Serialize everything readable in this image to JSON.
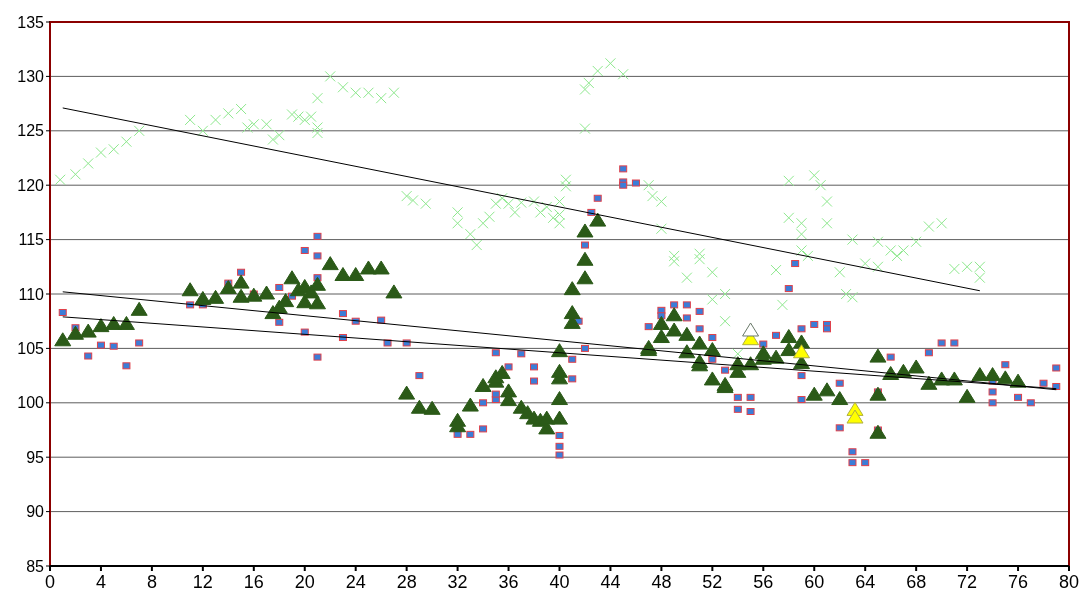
{
  "chart_data": {
    "type": "scatter",
    "xlim": [
      0,
      80
    ],
    "xticks": [
      0,
      4,
      8,
      12,
      16,
      20,
      24,
      28,
      32,
      36,
      40,
      44,
      48,
      52,
      56,
      60,
      64,
      68,
      72,
      76,
      80
    ],
    "ylim": [
      85,
      135
    ],
    "yticks": [
      85,
      90,
      95,
      100,
      105,
      110,
      115,
      120,
      125,
      130,
      135
    ],
    "grid": "y",
    "series": [
      {
        "color": "#8ee88e",
        "marker": "cross",
        "x": [
          0.8,
          2,
          3,
          4,
          5,
          6,
          7,
          11,
          12,
          13,
          14,
          15,
          15.5,
          16,
          17,
          17.5,
          18,
          19,
          19.5,
          20,
          20.5,
          21,
          21,
          21,
          22,
          23,
          24,
          25,
          26,
          27,
          28,
          28.5,
          29.5,
          32,
          32,
          33,
          33.5,
          34,
          34.5,
          35,
          35.5,
          36,
          36.5,
          37,
          38,
          38.5,
          39,
          39.5,
          40,
          40,
          40,
          40.5,
          40.5,
          42,
          42,
          42.3,
          43,
          44,
          45,
          47,
          47.3,
          48,
          48,
          49,
          49,
          50,
          51,
          51,
          52,
          52,
          53,
          53,
          54,
          57,
          57.5,
          58,
          58,
          59,
          59,
          59,
          59.5,
          60,
          60.5,
          61,
          61,
          62,
          62.5,
          63,
          63,
          64,
          65,
          65,
          66,
          66.5,
          67,
          68,
          69,
          70,
          71,
          72,
          73,
          73
        ],
        "values": [
          120.5,
          121,
          122,
          123,
          123.3,
          124,
          125,
          126,
          125,
          126,
          126.6,
          127,
          125.3,
          125.6,
          125.6,
          124.2,
          124.6,
          126.5,
          126.3,
          126,
          126.3,
          124.8,
          125.3,
          128,
          130,
          129,
          128.5,
          128.5,
          128,
          128.5,
          119,
          118.6,
          118.3,
          117.5,
          116.5,
          115.5,
          114.5,
          116.5,
          117.1,
          118.3,
          118.8,
          118.3,
          117.5,
          118.4,
          118.5,
          117.5,
          118,
          117,
          116.5,
          117.3,
          118.5,
          119.9,
          120.5,
          125.2,
          128.8,
          129.4,
          130.5,
          131.2,
          130.2,
          120,
          119,
          118.5,
          116,
          113.5,
          113,
          111.5,
          113.7,
          113.2,
          112,
          109.5,
          107.5,
          110,
          104.5,
          112.2,
          109,
          117,
          120.4,
          116.5,
          115.5,
          114,
          113.5,
          120.9,
          120,
          118.5,
          116.5,
          112,
          110,
          109.7,
          115,
          112.8,
          112.5,
          114.8,
          114,
          113.5,
          114,
          114.8,
          116.2,
          116.5,
          112.3,
          112.5,
          112.5,
          111.5
        ]
      },
      {
        "color": "#3b7dd8",
        "marker": "square",
        "x": [
          1,
          2,
          3,
          4,
          5,
          6,
          7,
          11,
          12,
          14,
          15,
          16,
          18,
          18,
          19,
          20,
          20,
          21,
          21,
          21,
          21,
          23,
          23,
          24,
          26,
          26.5,
          28,
          29,
          32,
          33,
          34,
          34,
          35,
          35,
          35,
          36,
          37,
          38,
          38,
          40,
          40,
          40,
          41,
          41,
          41.5,
          42,
          42,
          42.5,
          43,
          45,
          45,
          45,
          46,
          47,
          47,
          48,
          48,
          49,
          50,
          50,
          51,
          51,
          52,
          52,
          53,
          54,
          54,
          55,
          55,
          56,
          57,
          58,
          58.5,
          59,
          59,
          59,
          60,
          61,
          61,
          62,
          62,
          63,
          63,
          64,
          65,
          65,
          66,
          69,
          70,
          71,
          74,
          74,
          74,
          75,
          76,
          77,
          78,
          79,
          79
        ],
        "values": [
          108.3,
          106.9,
          104.3,
          105.3,
          105.2,
          103.4,
          105.5,
          109,
          109,
          111,
          112,
          110,
          107.4,
          110.6,
          109.8,
          114,
          106.5,
          115.3,
          111.5,
          113.5,
          104.2,
          106,
          108.2,
          107.5,
          107.6,
          105.5,
          105.5,
          102.5,
          97.1,
          97.1,
          100,
          97.6,
          100.3,
          100.8,
          104.6,
          103.3,
          104.5,
          103.3,
          102,
          97,
          96,
          95.2,
          104,
          102.2,
          107.5,
          105,
          114.5,
          117.5,
          118.8,
          120.3,
          121.5,
          120,
          120.2,
          105,
          107,
          108.5,
          108,
          109,
          109,
          107.8,
          108.4,
          106.8,
          106,
          104,
          103,
          100.5,
          99.4,
          100.5,
          99.2,
          105.4,
          106.2,
          110.5,
          112.8,
          106.8,
          102.5,
          100.3,
          107.2,
          107.2,
          106.8,
          101.8,
          97.7,
          94.5,
          95.5,
          94.5,
          101,
          97.5,
          104.2,
          104.6,
          105.5,
          105.5,
          102,
          101,
          100,
          103.5,
          100.5,
          100,
          101.8,
          101.5,
          103.2
        ]
      },
      {
        "color": "#2b5a18",
        "marker": "triangle",
        "x": [
          1,
          2,
          3,
          4,
          5,
          6,
          7,
          11,
          12,
          13,
          14,
          15,
          15,
          16,
          17,
          17.5,
          18,
          18.5,
          19,
          19.5,
          20,
          20,
          20.5,
          21,
          21,
          22,
          23,
          24,
          25,
          26,
          27,
          28,
          29,
          30,
          32,
          32,
          33,
          34,
          35,
          35,
          35.5,
          36,
          36,
          37,
          37.5,
          38,
          38.5,
          39,
          39,
          40,
          40,
          40,
          40,
          40,
          41,
          41,
          41,
          42,
          42,
          42,
          43,
          47,
          47,
          48,
          48,
          49,
          49,
          50,
          50,
          51,
          51,
          51,
          52,
          52,
          53,
          53,
          54,
          54,
          55,
          56,
          56,
          57,
          58,
          58,
          59,
          59,
          60,
          61,
          62,
          65,
          65,
          65,
          66,
          67,
          68,
          69,
          70,
          71,
          72,
          73,
          74,
          75,
          76
        ],
        "values": [
          105.7,
          106.3,
          106.5,
          107,
          107.2,
          107.2,
          108.5,
          110.3,
          109.5,
          109.6,
          110.5,
          111,
          109.7,
          109.8,
          110,
          108.2,
          108.7,
          109.3,
          111.4,
          110.3,
          110.6,
          109.2,
          110.1,
          110.8,
          109.1,
          112.7,
          111.7,
          111.7,
          112.3,
          112.3,
          110.1,
          100.8,
          99.5,
          99.4,
          98.3,
          97.8,
          99.7,
          101.5,
          101.9,
          102.3,
          102.7,
          101,
          100.2,
          99.5,
          99,
          98.5,
          98.3,
          97.6,
          98.5,
          98.5,
          100.3,
          102.2,
          102.8,
          104.7,
          107.3,
          108.2,
          110.4,
          111.4,
          113.1,
          115.7,
          116.7,
          104.8,
          105,
          107.2,
          106,
          108,
          106.6,
          106.2,
          104.6,
          103.4,
          103.7,
          105.4,
          104.8,
          102.1,
          101.6,
          101.4,
          103.5,
          102.8,
          103.5,
          104.5,
          104,
          104.1,
          106,
          104.8,
          105.5,
          103.6,
          100.7,
          101.1,
          100.3,
          100.7,
          97.2,
          104.2,
          102.6,
          102.8,
          103.2,
          101.7,
          102.1,
          102.1,
          100.5,
          102.5,
          102.5,
          102.2,
          101.9
        ]
      },
      {
        "color": "#ffff00",
        "marker": "triangle",
        "x": [
          55,
          59,
          63.2,
          63.2
        ],
        "values": [
          105.8,
          104.6,
          99.3,
          98.6
        ]
      },
      {
        "color": "#ffffff",
        "marker": "triangle",
        "x": [
          55
        ],
        "values": [
          106.6
        ]
      },
      {
        "type": "line",
        "color": "#000000",
        "marker": "none",
        "x": [
          1,
          73
        ],
        "values": [
          127.1,
          110.3
        ]
      },
      {
        "type": "line",
        "color": "#000000",
        "marker": "none",
        "x": [
          1,
          79
        ],
        "values": [
          110.2,
          101.2
        ]
      },
      {
        "type": "line",
        "color": "#000000",
        "marker": "none",
        "x": [
          1,
          79
        ],
        "values": [
          107.9,
          101.3
        ]
      }
    ]
  }
}
